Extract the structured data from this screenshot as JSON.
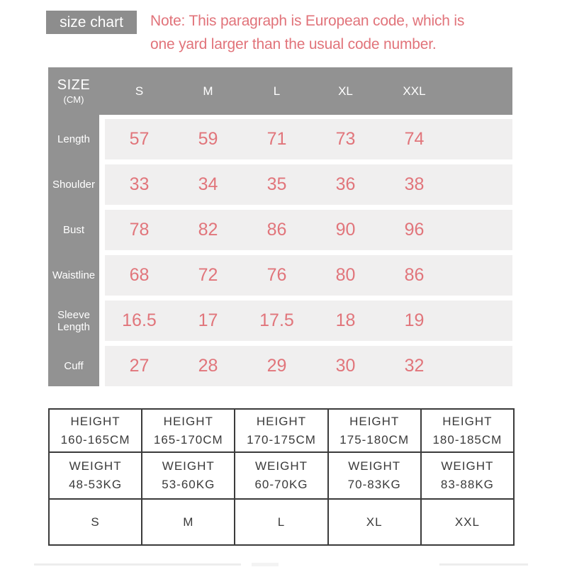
{
  "badge": {
    "label": "size chart"
  },
  "note": {
    "line1": "Note: This paragraph is European code, which is",
    "line2": "one yard larger than the usual code number."
  },
  "size_table": {
    "corner": {
      "title": "SIZE",
      "unit": "(CM)"
    },
    "columns": [
      "S",
      "M",
      "L",
      "XL",
      "XXL"
    ],
    "rows": [
      {
        "label": "Length",
        "values": [
          "57",
          "59",
          "71",
          "73",
          "74"
        ]
      },
      {
        "label": "Shoulder",
        "values": [
          "33",
          "34",
          "35",
          "36",
          "38"
        ]
      },
      {
        "label": "Bust",
        "values": [
          "78",
          "82",
          "86",
          "90",
          "96"
        ]
      },
      {
        "label": "Waistline",
        "values": [
          "68",
          "72",
          "76",
          "80",
          "86"
        ]
      },
      {
        "label": "Sleeve Length",
        "values": [
          "16.5",
          "17",
          "17.5",
          "18",
          "19"
        ]
      },
      {
        "label": "Cuff",
        "values": [
          "27",
          "28",
          "29",
          "30",
          "32"
        ]
      }
    ]
  },
  "fit_table": {
    "height_row": [
      {
        "title": "HEIGHT",
        "range": "160-165CM"
      },
      {
        "title": "HEIGHT",
        "range": "165-170CM"
      },
      {
        "title": "HEIGHT",
        "range": "170-175CM"
      },
      {
        "title": "HEIGHT",
        "range": "175-180CM"
      },
      {
        "title": "HEIGHT",
        "range": "180-185CM"
      }
    ],
    "weight_row": [
      {
        "title": "WEIGHT",
        "range": "48-53KG"
      },
      {
        "title": "WEIGHT",
        "range": "53-60KG"
      },
      {
        "title": "WEIGHT",
        "range": "60-70KG"
      },
      {
        "title": "WEIGHT",
        "range": "70-83KG"
      },
      {
        "title": "WEIGHT",
        "range": "83-88KG"
      }
    ],
    "size_row": [
      "S",
      "M",
      "L",
      "XL",
      "XXL"
    ]
  },
  "colors": {
    "table_gray": "#929292",
    "badge_gray": "#8d8d8d",
    "stripe_gray": "#f0efef",
    "value_pink": "#e1757b",
    "note_pink": "#e1737a",
    "fit_border": "#3b3b3b",
    "fit_text": "#3a3a3a"
  },
  "chart_data": [
    {
      "type": "table",
      "title": "size chart (SIZE CM, European code — one size larger than usual)",
      "columns": [
        "SIZE (CM)",
        "S",
        "M",
        "L",
        "XL",
        "XXL"
      ],
      "rows": [
        [
          "Length",
          57,
          59,
          71,
          73,
          74
        ],
        [
          "Shoulder",
          33,
          34,
          35,
          36,
          38
        ],
        [
          "Bust",
          78,
          82,
          86,
          90,
          96
        ],
        [
          "Waistline",
          68,
          72,
          76,
          80,
          86
        ],
        [
          "Sleeve Length",
          16.5,
          17,
          17.5,
          18,
          19
        ],
        [
          "Cuff",
          27,
          28,
          29,
          30,
          32
        ]
      ]
    },
    {
      "type": "table",
      "title": "height / weight to size mapping",
      "columns": [
        "S",
        "M",
        "L",
        "XL",
        "XXL"
      ],
      "rows": [
        [
          "HEIGHT 160-165CM",
          "HEIGHT 165-170CM",
          "HEIGHT 170-175CM",
          "HEIGHT 175-180CM",
          "HEIGHT 180-185CM"
        ],
        [
          "WEIGHT 48-53KG",
          "WEIGHT 53-60KG",
          "WEIGHT 60-70KG",
          "WEIGHT 70-83KG",
          "WEIGHT 83-88KG"
        ],
        [
          "S",
          "M",
          "L",
          "XL",
          "XXL"
        ]
      ]
    }
  ]
}
